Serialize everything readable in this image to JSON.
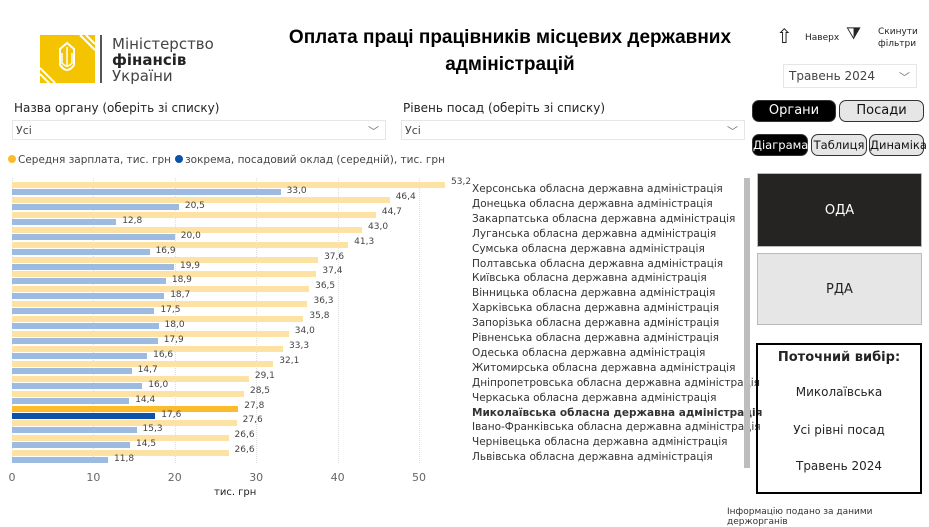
{
  "logo": {
    "line1": "Міністерство",
    "line2": "фінансів",
    "line3": "України"
  },
  "title": "Оплата праці працівників місцевих державних адміністрацій",
  "top_buttons": {
    "up": "Наверх",
    "reset": "Скинути фільтри"
  },
  "period_select": {
    "value": "Травень 2024"
  },
  "filters": {
    "organ_label": "Назва органу (оберіть зі списку)",
    "organ_value": "Усі",
    "level_label": "Рівень посад (оберіть зі списку)",
    "level_value": "Усі"
  },
  "toggles": {
    "organs": "Органи",
    "positions": "Посади",
    "diagram": "Діаграма",
    "table": "Таблиця",
    "dynamics": "Динаміка"
  },
  "cards": {
    "oda": "ОДА",
    "rda": "РДА"
  },
  "current": {
    "title": "Поточний вибір:",
    "organ": "Миколаївська",
    "level": "Усі рівні посад",
    "period": "Травень 2024"
  },
  "footer": "Інформацію подано за даними держорганів",
  "colors": {
    "avg": "#fde2a4",
    "salary": "#9dbbe0",
    "avg_sel": "#fbbb2a",
    "salary_sel": "#0d52a8"
  },
  "chart_data": {
    "type": "bar",
    "orientation": "horizontal",
    "xlabel": "тис. грн",
    "xlim": [
      0,
      53
    ],
    "xticks": [
      "0",
      "10",
      "20",
      "30",
      "40",
      "50"
    ],
    "grid": true,
    "legend": [
      {
        "name": "Середня зарплата, тис. грн",
        "color": "#fbbb2a"
      },
      {
        "name": "зокрема, посадовий оклад (середній), тис. грн",
        "color": "#0d52a8"
      }
    ],
    "selected": "Миколаївська обласна державна адміністрація",
    "categories": [
      "Херсонська обласна державна адміністрація",
      "Донецька обласна державна адміністрація",
      "Закарпатська обласна державна адміністрація",
      "Луганська обласна державна адміністрація",
      "Сумська обласна державна адміністрація",
      "Полтавська обласна державна адміністрація",
      "Київська обласна державна адміністрація",
      "Вінницька обласна державна адміністрація",
      "Харківська обласна державна адміністрація",
      "Запорізька обласна державна адміністрація",
      "Рівненська обласна державна адміністрація",
      "Одеська обласна державна адміністрація",
      "Житомирська обласна державна адміністрація",
      "Дніпропетровська обласна державна адміністрація",
      "Черкаська обласна державна адміністрація",
      "Миколаївська обласна державна адміністрація",
      "Івано-Франківська обласна державна адміністрація",
      "Чернівецька обласна державна адміністрація",
      "Львівська обласна державна адміністрація"
    ],
    "series": [
      {
        "name": "Середня зарплата, тис. грн",
        "values": [
          53.2,
          46.4,
          44.7,
          43.0,
          41.3,
          37.6,
          37.4,
          36.5,
          36.3,
          35.8,
          34.0,
          33.3,
          32.1,
          29.1,
          28.5,
          27.8,
          27.6,
          26.6,
          26.6
        ]
      },
      {
        "name": "зокрема, посадовий оклад (середній), тис. грн",
        "values": [
          33.0,
          20.5,
          12.8,
          20.0,
          16.9,
          19.9,
          18.9,
          18.7,
          17.5,
          18.0,
          17.9,
          16.6,
          14.7,
          16.0,
          14.4,
          17.6,
          15.3,
          14.5,
          11.8
        ]
      }
    ]
  }
}
